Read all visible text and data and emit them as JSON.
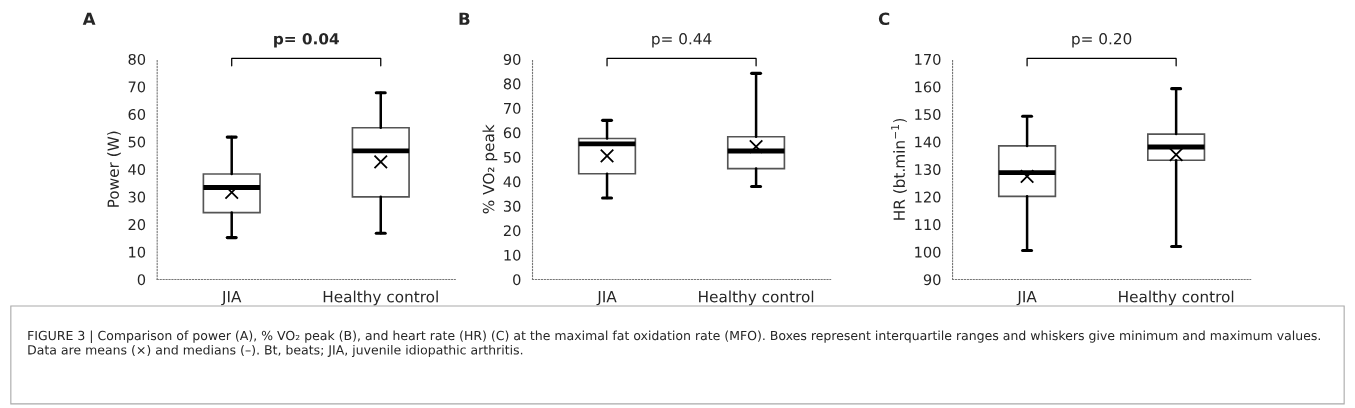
{
  "chart_data": [
    {
      "type": "box",
      "title": "A",
      "ylabel": "Power (W)",
      "categories": [
        "JIA",
        "Healthy control"
      ],
      "ylim": [
        0,
        80
      ],
      "yticks": [
        0,
        10,
        20,
        30,
        40,
        50,
        60,
        70,
        80
      ],
      "grid": false,
      "boxes": [
        {
          "low": 15.2,
          "q1": 24.3,
          "median": 33.4,
          "q3": 38.3,
          "high": 51.7,
          "mean": 31.6
        },
        {
          "low": 16.8,
          "q1": 30.0,
          "median": 46.7,
          "q3": 55.1,
          "high": 67.8,
          "mean": 42.7
        }
      ],
      "annotations": [
        "p= 0.04",
        "FIGURE 3 | Comparison of power (A), % VO₂ peak (B), and heart rate (HR) (C) at the maximal fat oxidation rate (MFO). Boxes represent interquartile ranges and whiskers give minimum and maximum values. Data are means (×) and medians (–). Bt, beats; JIA, juvenile idiopathic arthritis."
      ]
    },
    {
      "type": "box",
      "title": "B",
      "ylabel": "% VO₂ peak",
      "categories": [
        "JIA",
        "Healthy control"
      ],
      "ylim": [
        0,
        90
      ],
      "yticks": [
        0,
        10,
        20,
        30,
        40,
        50,
        60,
        70,
        80,
        90
      ],
      "grid": false,
      "boxes": [
        {
          "low": 33.3,
          "q1": 43.2,
          "median": 55.4,
          "q3": 57.6,
          "high": 65.0,
          "mean": 50.5
        },
        {
          "low": 38.0,
          "q1": 45.3,
          "median": 52.5,
          "q3": 58.3,
          "high": 84.2,
          "mean": 54.3
        }
      ],
      "annotations": [
        "p= 0.44"
      ]
    },
    {
      "type": "box",
      "title": "C",
      "ylabel": "HR (bt.min$^{−1}$)",
      "categories": [
        "JIA",
        "Healthy control"
      ],
      "ylim": [
        90,
        170
      ],
      "yticks": [
        90,
        100,
        110,
        120,
        130,
        140,
        150,
        160,
        170
      ],
      "grid": false,
      "boxes": [
        {
          "low": 100.5,
          "q1": 120.2,
          "median": 128.8,
          "q3": 138.5,
          "high": 149.3,
          "mean": 127.4
        },
        {
          "low": 102.0,
          "q1": 133.3,
          "median": 138.1,
          "q3": 142.8,
          "high": 159.3,
          "mean": 135.3
        }
      ],
      "annotations": [
        "p= 0.20"
      ]
    }
  ]
}
